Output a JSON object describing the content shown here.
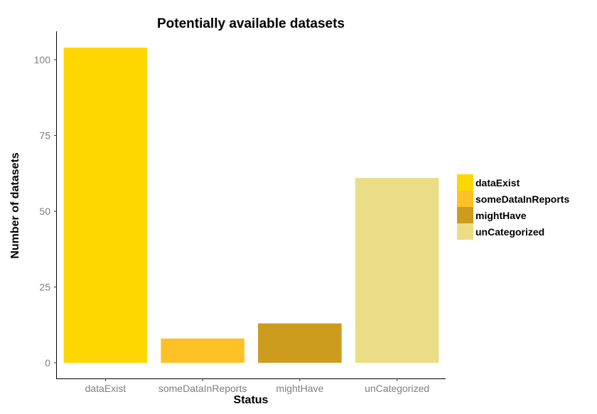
{
  "chart_data": {
    "type": "bar",
    "title": "Potentially available datasets",
    "xlabel": "Status",
    "ylabel": "Number of datasets",
    "categories": [
      "dataExist",
      "someDataInReports",
      "mightHave",
      "unCategorized"
    ],
    "values": [
      104,
      8,
      13,
      61
    ],
    "colors": [
      "#FFD700",
      "#FFC125",
      "#CD9B1D",
      "#EADD85"
    ],
    "ylim": [
      0,
      110
    ],
    "yticks": [
      0,
      25,
      50,
      75,
      100
    ],
    "grid": false,
    "legend": {
      "position": "right",
      "entries": [
        "dataExist",
        "someDataInReports",
        "mightHave",
        "unCategorized"
      ]
    }
  }
}
